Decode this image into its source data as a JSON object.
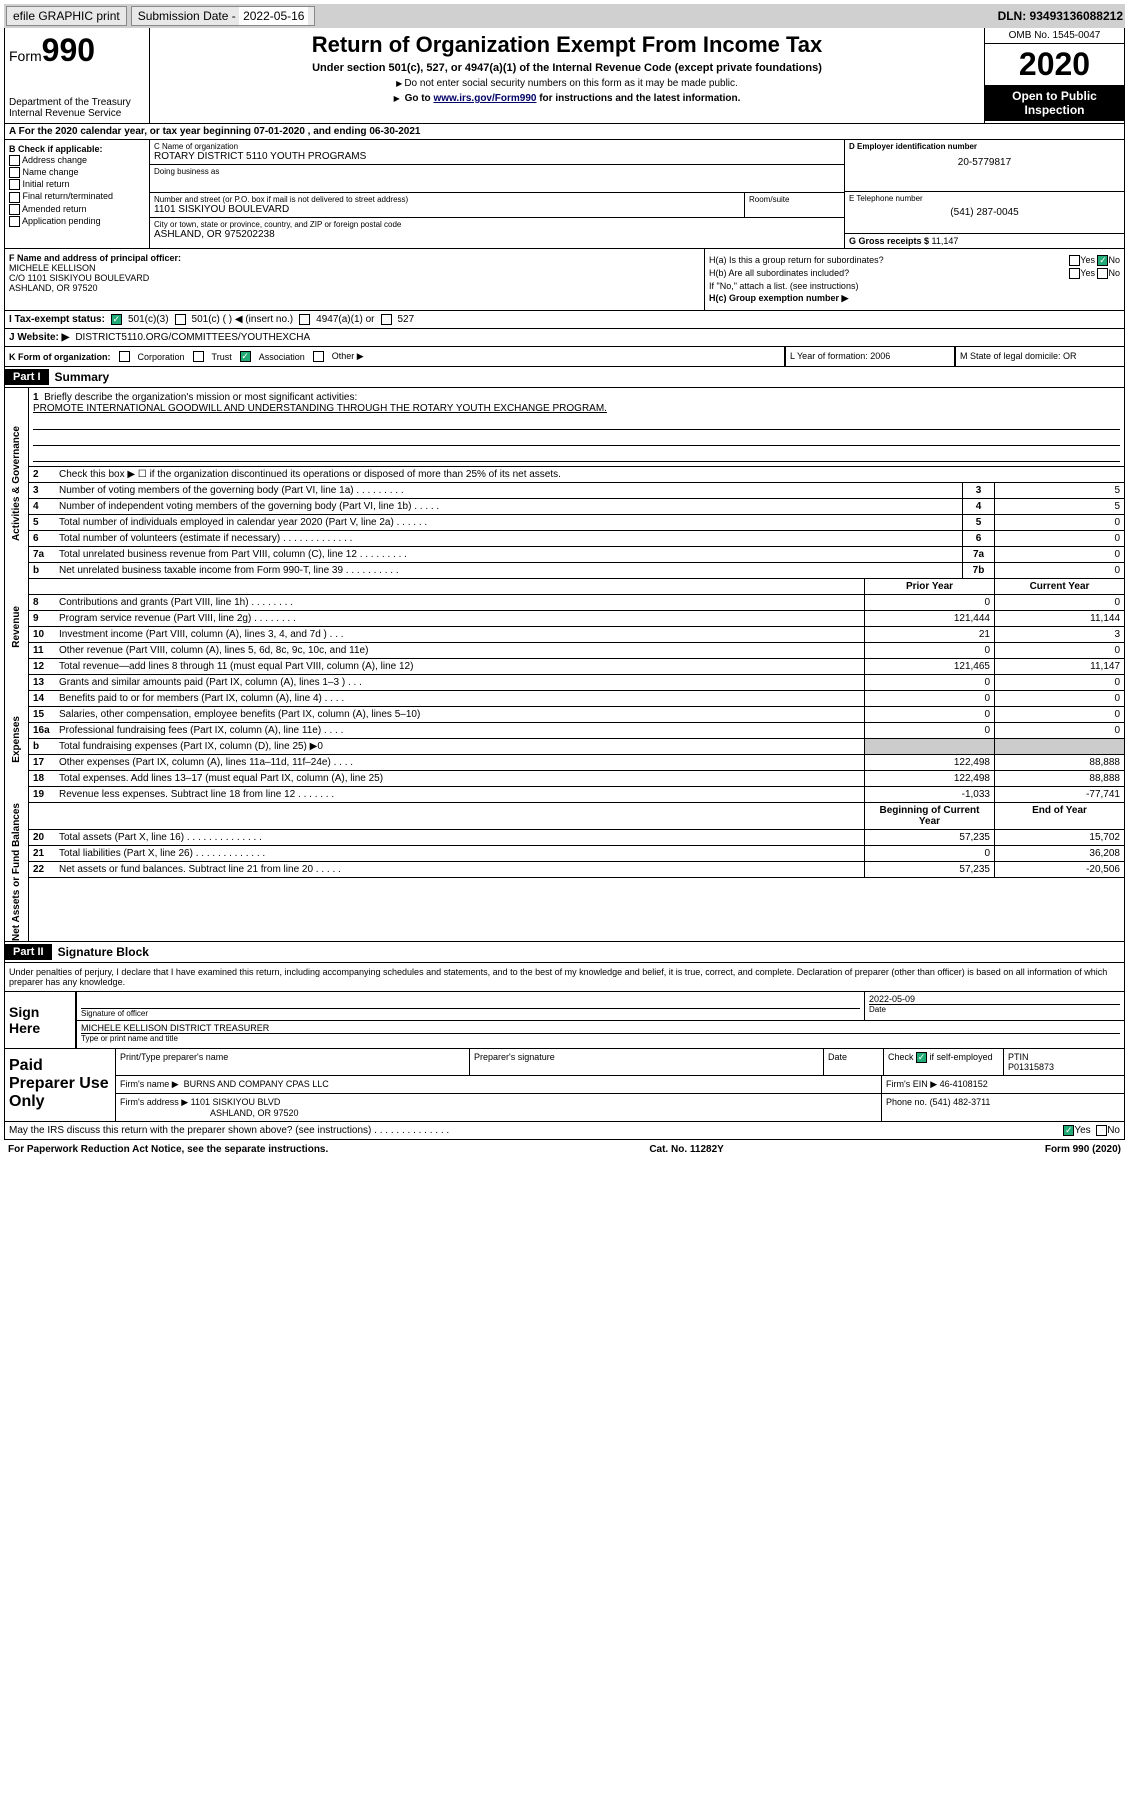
{
  "topbar": {
    "efile": "efile GRAPHIC print",
    "sub_lbl": "Submission Date - ",
    "sub_date": "2022-05-16",
    "dln": "DLN: 93493136088212"
  },
  "header": {
    "form_word": "Form",
    "form_num": "990",
    "dept": "Department of the Treasury\nInternal Revenue Service",
    "title": "Return of Organization Exempt From Income Tax",
    "sub": "Under section 501(c), 527, or 4947(a)(1) of the Internal Revenue Code (except private foundations)",
    "note1": "Do not enter social security numbers on this form as it may be made public.",
    "note2_pre": "Go to ",
    "note2_link": "www.irs.gov/Form990",
    "note2_post": " for instructions and the latest information.",
    "omb": "OMB No. 1545-0047",
    "year": "2020",
    "inspect": "Open to Public Inspection"
  },
  "row_a": "A For the 2020 calendar year, or tax year beginning 07-01-2020    , and ending 06-30-2021",
  "col_b": {
    "hdr": "B Check if applicable:",
    "items": [
      "Address change",
      "Name change",
      "Initial return",
      "Final return/terminated",
      "Amended return",
      "Application pending"
    ]
  },
  "col_c": {
    "name_lbl": "C Name of organization",
    "name": "ROTARY DISTRICT 5110 YOUTH PROGRAMS",
    "dba_lbl": "Doing business as",
    "dba": "",
    "street_lbl": "Number and street (or P.O. box if mail is not delivered to street address)",
    "room_lbl": "Room/suite",
    "street": "1101 SISKIYOU BOULEVARD",
    "city_lbl": "City or town, state or province, country, and ZIP or foreign postal code",
    "city": "ASHLAND, OR  975202238"
  },
  "col_d": {
    "ein_lbl": "D Employer identification number",
    "ein": "20-5779817",
    "tel_lbl": "E Telephone number",
    "tel": "(541) 287-0045",
    "gross_lbl": "G Gross receipts $ ",
    "gross": "11,147"
  },
  "col_f": {
    "lbl": "F  Name and address of principal officer:",
    "name": "MICHELE KELLISON",
    "addr1": "C/O 1101 SISKIYOU BOULEVARD",
    "addr2": "ASHLAND, OR  97520"
  },
  "col_h": {
    "ha": "H(a)  Is this a group return for subordinates?",
    "ha_no": "No",
    "hb": "H(b)  Are all subordinates included?",
    "hb_note": "If \"No,\" attach a list. (see instructions)",
    "hc": "H(c)  Group exemption number ▶"
  },
  "row_i": {
    "lbl": "I   Tax-exempt status:",
    "o1": "501(c)(3)",
    "o2": "501(c) (  ) ◀ (insert no.)",
    "o3": "4947(a)(1) or",
    "o4": "527"
  },
  "row_j": {
    "lbl": "J   Website: ▶",
    "val": "DISTRICT5110.ORG/COMMITTEES/YOUTHEXCHA"
  },
  "row_k": {
    "k": "K Form of organization:",
    "opts": [
      "Corporation",
      "Trust",
      "Association",
      "Other ▶"
    ],
    "l": "L Year of formation: 2006",
    "m": "M State of legal domicile: OR"
  },
  "part1": {
    "num": "Part I",
    "title": "Summary"
  },
  "mission": {
    "ln": "1",
    "lbl": "Briefly describe the organization's mission or most significant activities:",
    "val": "PROMOTE INTERNATIONAL GOODWILL AND UNDERSTANDING THROUGH THE ROTARY YOUTH EXCHANGE PROGRAM."
  },
  "gov": {
    "label": "Activities & Governance",
    "l2": "Check this box ▶ ☐  if the organization discontinued its operations or disposed of more than 25% of its net assets.",
    "rows": [
      {
        "n": "3",
        "t": "Number of voting members of the governing body (Part VI, line 1a)   .    .    .    .    .    .    .    .    .",
        "b": "3",
        "v": "5"
      },
      {
        "n": "4",
        "t": "Number of independent voting members of the governing body (Part VI, line 1b)   .    .    .    .    .",
        "b": "4",
        "v": "5"
      },
      {
        "n": "5",
        "t": "Total number of individuals employed in calendar year 2020 (Part V, line 2a)    .    .    .    .    .    .",
        "b": "5",
        "v": "0"
      },
      {
        "n": "6",
        "t": "Total number of volunteers (estimate if necessary)    .    .    .    .    .    .    .    .    .    .    .    .    .",
        "b": "6",
        "v": "0"
      },
      {
        "n": "7a",
        "t": "Total unrelated business revenue from Part VIII, column (C), line 12   .    .    .    .    .    .    .    .    .",
        "b": "7a",
        "v": "0"
      },
      {
        "n": "b",
        "t": "Net unrelated business taxable income from Form 990-T, line 39    .    .    .    .    .    .    .    .    .    .",
        "b": "7b",
        "v": "0"
      }
    ]
  },
  "rev": {
    "label": "Revenue",
    "hdr_prior": "Prior Year",
    "hdr_curr": "Current Year",
    "rows": [
      {
        "n": "8",
        "t": "Contributions and grants (Part VIII, line 1h)    .    .    .    .    .    .    .    .",
        "p": "0",
        "c": "0"
      },
      {
        "n": "9",
        "t": "Program service revenue (Part VIII, line 2g)   .    .    .    .    .    .    .    .",
        "p": "121,444",
        "c": "11,144"
      },
      {
        "n": "10",
        "t": "Investment income (Part VIII, column (A), lines 3, 4, and 7d )   .    .    .",
        "p": "21",
        "c": "3"
      },
      {
        "n": "11",
        "t": "Other revenue (Part VIII, column (A), lines 5, 6d, 8c, 9c, 10c, and 11e)",
        "p": "0",
        "c": "0"
      },
      {
        "n": "12",
        "t": "Total revenue—add lines 8 through 11 (must equal Part VIII, column (A), line 12)",
        "p": "121,465",
        "c": "11,147"
      }
    ]
  },
  "exp": {
    "label": "Expenses",
    "rows": [
      {
        "n": "13",
        "t": "Grants and similar amounts paid (Part IX, column (A), lines 1–3 )   .    .    .",
        "p": "0",
        "c": "0"
      },
      {
        "n": "14",
        "t": "Benefits paid to or for members (Part IX, column (A), line 4)   .    .    .    .",
        "p": "0",
        "c": "0"
      },
      {
        "n": "15",
        "t": "Salaries, other compensation, employee benefits (Part IX, column (A), lines 5–10)",
        "p": "0",
        "c": "0"
      },
      {
        "n": "16a",
        "t": "Professional fundraising fees (Part IX, column (A), line 11e)   .    .    .    .",
        "p": "0",
        "c": "0"
      },
      {
        "n": "b",
        "t": "Total fundraising expenses (Part IX, column (D), line 25) ▶0",
        "shade": true
      },
      {
        "n": "17",
        "t": "Other expenses (Part IX, column (A), lines 11a–11d, 11f–24e)   .    .    .    .",
        "p": "122,498",
        "c": "88,888"
      },
      {
        "n": "18",
        "t": "Total expenses. Add lines 13–17 (must equal Part IX, column (A), line 25)",
        "p": "122,498",
        "c": "88,888"
      },
      {
        "n": "19",
        "t": "Revenue less expenses. Subtract line 18 from line 12   .    .    .    .    .    .    .",
        "p": "-1,033",
        "c": "-77,741"
      }
    ]
  },
  "net": {
    "label": "Net Assets or Fund Balances",
    "hdr_beg": "Beginning of Current Year",
    "hdr_end": "End of Year",
    "rows": [
      {
        "n": "20",
        "t": "Total assets (Part X, line 16)   .    .    .    .    .    .    .    .    .    .    .    .    .    .",
        "p": "57,235",
        "c": "15,702"
      },
      {
        "n": "21",
        "t": "Total liabilities (Part X, line 26)   .    .    .    .    .    .    .    .    .    .    .    .    .",
        "p": "0",
        "c": "36,208"
      },
      {
        "n": "22",
        "t": "Net assets or fund balances. Subtract line 21 from line 20   .    .    .    .    .",
        "p": "57,235",
        "c": "-20,506"
      }
    ]
  },
  "part2": {
    "num": "Part II",
    "title": "Signature Block"
  },
  "sig_intro": "Under penalties of perjury, I declare that I have examined this return, including accompanying schedules and statements, and to the best of my knowledge and belief, it is true, correct, and complete. Declaration of preparer (other than officer) is based on all information of which preparer has any knowledge.",
  "sign": {
    "here": "Sign Here",
    "sig_lbl": "Signature of officer",
    "date_lbl": "Date",
    "date": "2022-05-09",
    "name": "MICHELE KELLISON  DISTRICT TREASURER",
    "name_lbl": "Type or print name and title"
  },
  "prep": {
    "title": "Paid Preparer Use Only",
    "h1": "Print/Type preparer's name",
    "h2": "Preparer's signature",
    "h3": "Date",
    "h4_pre": "Check",
    "h4_post": "if self-employed",
    "h5": "PTIN",
    "ptin": "P01315873",
    "firm_lbl": "Firm's name      ▶",
    "firm": "BURNS AND COMPANY CPAS LLC",
    "ein_lbl": "Firm's EIN ▶",
    "ein": "46-4108152",
    "addr_lbl": "Firm's address  ▶",
    "addr1": "1101 SISKIYOU BLVD",
    "addr2": "ASHLAND, OR  97520",
    "phone_lbl": "Phone no.",
    "phone": "(541) 482-3711"
  },
  "discuss": "May the IRS discuss this return with the preparer shown above? (see instructions)    .    .    .    .    .    .    .    .    .    .    .    .    .    .",
  "footer": {
    "left": "For Paperwork Reduction Act Notice, see the separate instructions.",
    "mid": "Cat. No. 11282Y",
    "right": "Form 990 (2020)"
  },
  "yesno": {
    "yes": "Yes",
    "no": "No"
  }
}
